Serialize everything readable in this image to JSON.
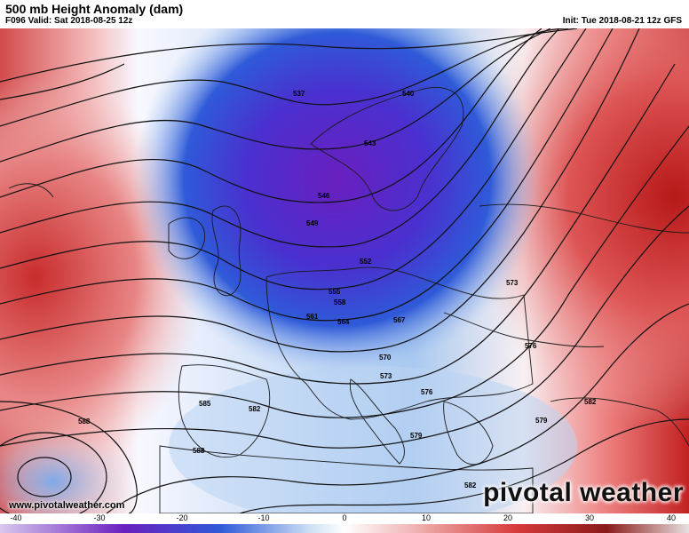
{
  "header": {
    "title": "500 mb Height Anomaly (dam)",
    "valid": "F096 Valid: Sat 2018-08-25 12z",
    "init": "Init: Tue 2018-08-21 12z GFS"
  },
  "map": {
    "contour_labels": [
      "537",
      "540",
      "543",
      "546",
      "549",
      "552",
      "555",
      "558",
      "561",
      "564",
      "567",
      "570",
      "573",
      "573",
      "576",
      "576",
      "579",
      "579",
      "582",
      "582",
      "582",
      "585",
      "588",
      "588"
    ]
  },
  "footer": {
    "url": "www.pivotalweather.com",
    "brand": "pivotal weather"
  },
  "colorbar": {
    "ticks": [
      "-40",
      "-30",
      "-20",
      "-10",
      "0",
      "10",
      "20",
      "30",
      "40"
    ],
    "colors": {
      "low": "#d8c8ee",
      "purple": "#6a1fbf",
      "blue": "#2f5ad8",
      "light_blue": "#cde0f5",
      "white": "#ffffff",
      "pink": "#f0b4b4",
      "red": "#d63a3a",
      "dark_red": "#8a1a1a",
      "high": "#e8e0e0"
    }
  }
}
